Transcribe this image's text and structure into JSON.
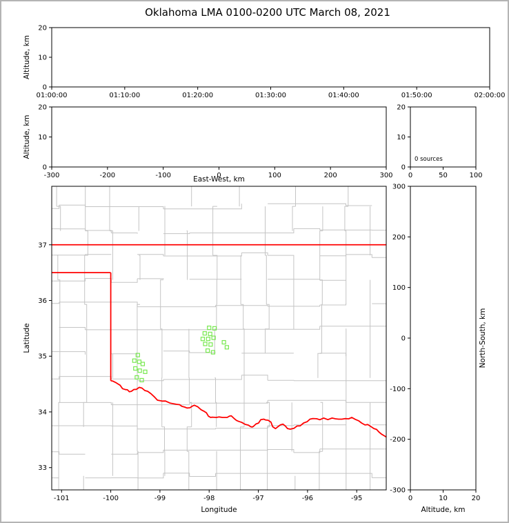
{
  "title": "Oklahoma LMA 0100-0200 UTC March 08, 2021",
  "colors": {
    "frame": "#000000",
    "window_border": "#b4b4b4",
    "state_border": "#ff0000",
    "county_lines": "#c4c4c4",
    "station_marker": "#77e84f"
  },
  "chart_data": {
    "type": "scatter",
    "title": "Oklahoma LMA 0100-0200 UTC March 08, 2021",
    "panels": [
      {
        "id": "time_height",
        "name": "time-height-panel",
        "xlim": [
          0,
          3600
        ],
        "ylim": [
          0,
          20
        ],
        "x_tick_vals": [
          0,
          600,
          1200,
          1800,
          2400,
          3000,
          3600
        ],
        "x_tick_labels": [
          "01:00:00",
          "01:10:00",
          "01:20:00",
          "01:30:00",
          "01:40:00",
          "01:50:00",
          "02:00:00"
        ],
        "y_tick_vals": [
          0,
          10,
          20
        ],
        "y_tick_labels": [
          "0",
          "10",
          "20"
        ],
        "xlabel": "",
        "ylabel": "Altitude, km",
        "points": []
      },
      {
        "id": "ew_height",
        "name": "eastwest-height-panel",
        "xlim": [
          -300,
          300
        ],
        "ylim": [
          0,
          20
        ],
        "x_tick_vals": [
          -300,
          -200,
          -100,
          0,
          100,
          200,
          300
        ],
        "x_tick_labels": [
          "-300",
          "-200",
          "-100",
          "0",
          "100",
          "200",
          "300"
        ],
        "y_tick_vals": [
          0,
          10,
          20
        ],
        "y_tick_labels": [
          "0",
          "10",
          "20"
        ],
        "xlabel": "East-West, km",
        "ylabel": "Altitude, km",
        "points": []
      },
      {
        "id": "alt_hist",
        "name": "altitude-histogram-panel",
        "xlim": [
          0,
          100
        ],
        "ylim": [
          0,
          20
        ],
        "x_tick_vals": [
          0,
          50,
          100
        ],
        "x_tick_labels": [
          "0",
          "50",
          "100"
        ],
        "y_tick_vals": [
          0,
          10,
          20
        ],
        "y_tick_labels": [
          "0",
          "10",
          "20"
        ],
        "xlabel": "",
        "annotation": "0 sources",
        "points": []
      },
      {
        "id": "map",
        "name": "plan-view-map-panel",
        "xlim": [
          -101.2,
          -94.4
        ],
        "ylim": [
          32.6,
          38.05
        ],
        "x_tick_vals": [
          -101,
          -100,
          -99,
          -98,
          -97,
          -96,
          -95
        ],
        "x_tick_labels": [
          "-101",
          "-100",
          "-99",
          "-98",
          "-97",
          "-96",
          "-95"
        ],
        "y_tick_vals": [
          33,
          34,
          35,
          36,
          37
        ],
        "y_tick_labels": [
          "33",
          "34",
          "35",
          "36",
          "37"
        ],
        "xlabel": "Longitude",
        "ylabel": "Latitude"
      },
      {
        "id": "ns_height",
        "name": "northsouth-height-panel",
        "xlim": [
          0,
          20
        ],
        "ylim": [
          -300,
          300
        ],
        "x_tick_vals": [
          0,
          10,
          20
        ],
        "x_tick_labels": [
          "0",
          "10",
          "20"
        ],
        "y_tick_vals": [
          300,
          200,
          100,
          0,
          -100,
          -200,
          -300
        ],
        "y_tick_labels": [
          "300",
          "200",
          "100",
          "0",
          "-100",
          "-200",
          "-300"
        ],
        "xlabel": "Altitude, km",
        "ylabel_right": "North-South, km",
        "points": []
      }
    ],
    "state_border": [
      [
        [
          -101.2,
          37.0
        ],
        [
          -94.4,
          37.0
        ]
      ],
      [
        [
          -101.2,
          36.5
        ],
        [
          -100.0,
          36.5
        ]
      ],
      [
        [
          -100.0,
          36.5
        ],
        [
          -100.0,
          34.56
        ]
      ]
    ],
    "red_river": [
      [
        -100.0,
        34.56
      ],
      [
        -99.85,
        34.5
      ],
      [
        -99.7,
        34.4
      ],
      [
        -99.58,
        34.37
      ],
      [
        -99.42,
        34.44
      ],
      [
        -99.25,
        34.37
      ],
      [
        -99.05,
        34.21
      ],
      [
        -98.8,
        34.16
      ],
      [
        -98.6,
        34.13
      ],
      [
        -98.45,
        34.07
      ],
      [
        -98.3,
        34.12
      ],
      [
        -98.1,
        34.01
      ],
      [
        -97.97,
        33.9
      ],
      [
        -97.85,
        33.9
      ],
      [
        -97.68,
        33.9
      ],
      [
        -97.55,
        33.93
      ],
      [
        -97.4,
        33.83
      ],
      [
        -97.2,
        33.76
      ],
      [
        -97.1,
        33.74
      ],
      [
        -96.95,
        33.86
      ],
      [
        -96.8,
        33.85
      ],
      [
        -96.65,
        33.7
      ],
      [
        -96.5,
        33.78
      ],
      [
        -96.35,
        33.69
      ],
      [
        -96.15,
        33.75
      ],
      [
        -95.95,
        33.87
      ],
      [
        -95.75,
        33.86
      ],
      [
        -95.5,
        33.89
      ],
      [
        -95.3,
        33.87
      ],
      [
        -95.1,
        33.9
      ],
      [
        -94.9,
        33.8
      ],
      [
        -94.7,
        33.73
      ],
      [
        -94.55,
        33.64
      ],
      [
        -94.4,
        33.55
      ]
    ],
    "stations": [
      [
        -99.45,
        35.02
      ],
      [
        -99.52,
        34.92
      ],
      [
        -99.42,
        34.9
      ],
      [
        -99.35,
        34.86
      ],
      [
        -99.5,
        34.78
      ],
      [
        -99.41,
        34.74
      ],
      [
        -99.3,
        34.72
      ],
      [
        -99.47,
        34.62
      ],
      [
        -99.37,
        34.57
      ],
      [
        -98.0,
        35.51
      ],
      [
        -97.89,
        35.5
      ],
      [
        -98.09,
        35.41
      ],
      [
        -97.98,
        35.4
      ],
      [
        -98.13,
        35.31
      ],
      [
        -98.02,
        35.31
      ],
      [
        -97.91,
        35.33
      ],
      [
        -98.08,
        35.22
      ],
      [
        -97.97,
        35.21
      ],
      [
        -97.7,
        35.25
      ],
      [
        -97.64,
        35.16
      ],
      [
        -98.03,
        35.1
      ],
      [
        -97.92,
        35.07
      ]
    ]
  }
}
